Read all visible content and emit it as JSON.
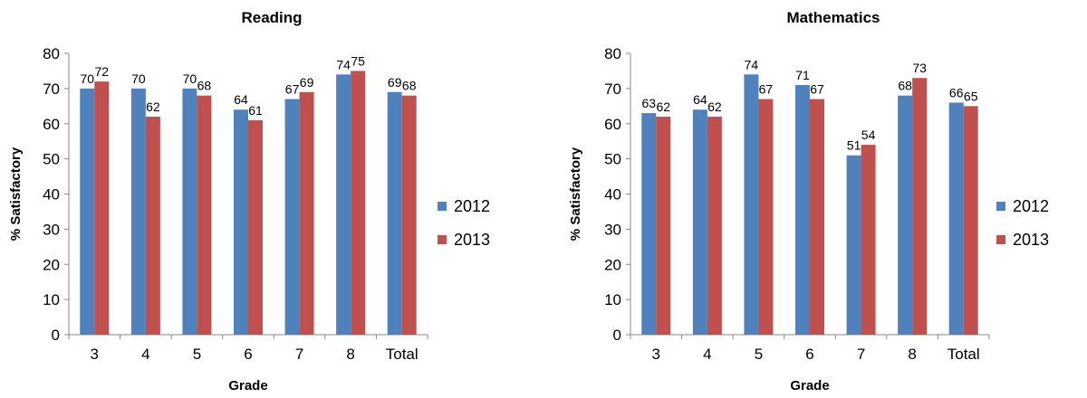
{
  "chart_data": [
    {
      "type": "bar",
      "title": "Reading",
      "xlabel": "Grade",
      "ylabel": "% Satisfactory",
      "ylim": [
        0,
        80
      ],
      "yticks": [
        0,
        10,
        20,
        30,
        40,
        50,
        60,
        70,
        80
      ],
      "grid": false,
      "legend": "right",
      "categories": [
        "3",
        "4",
        "5",
        "6",
        "7",
        "8",
        "Total"
      ],
      "series": [
        {
          "name": "2012",
          "color": "#4F81BD",
          "values": [
            70,
            70,
            70,
            64,
            67,
            74,
            69
          ]
        },
        {
          "name": "2013",
          "color": "#C0504D",
          "values": [
            72,
            62,
            68,
            61,
            69,
            75,
            68
          ]
        }
      ]
    },
    {
      "type": "bar",
      "title": "Mathematics",
      "xlabel": "Grade",
      "ylabel": "% Satisfactory",
      "ylim": [
        0,
        80
      ],
      "yticks": [
        0,
        10,
        20,
        30,
        40,
        50,
        60,
        70,
        80
      ],
      "grid": false,
      "legend": "right",
      "categories": [
        "3",
        "4",
        "5",
        "6",
        "7",
        "8",
        "Total"
      ],
      "series": [
        {
          "name": "2012",
          "color": "#4F81BD",
          "values": [
            63,
            64,
            74,
            71,
            51,
            68,
            66
          ]
        },
        {
          "name": "2013",
          "color": "#C0504D",
          "values": [
            62,
            62,
            67,
            67,
            54,
            73,
            65
          ]
        }
      ]
    }
  ]
}
